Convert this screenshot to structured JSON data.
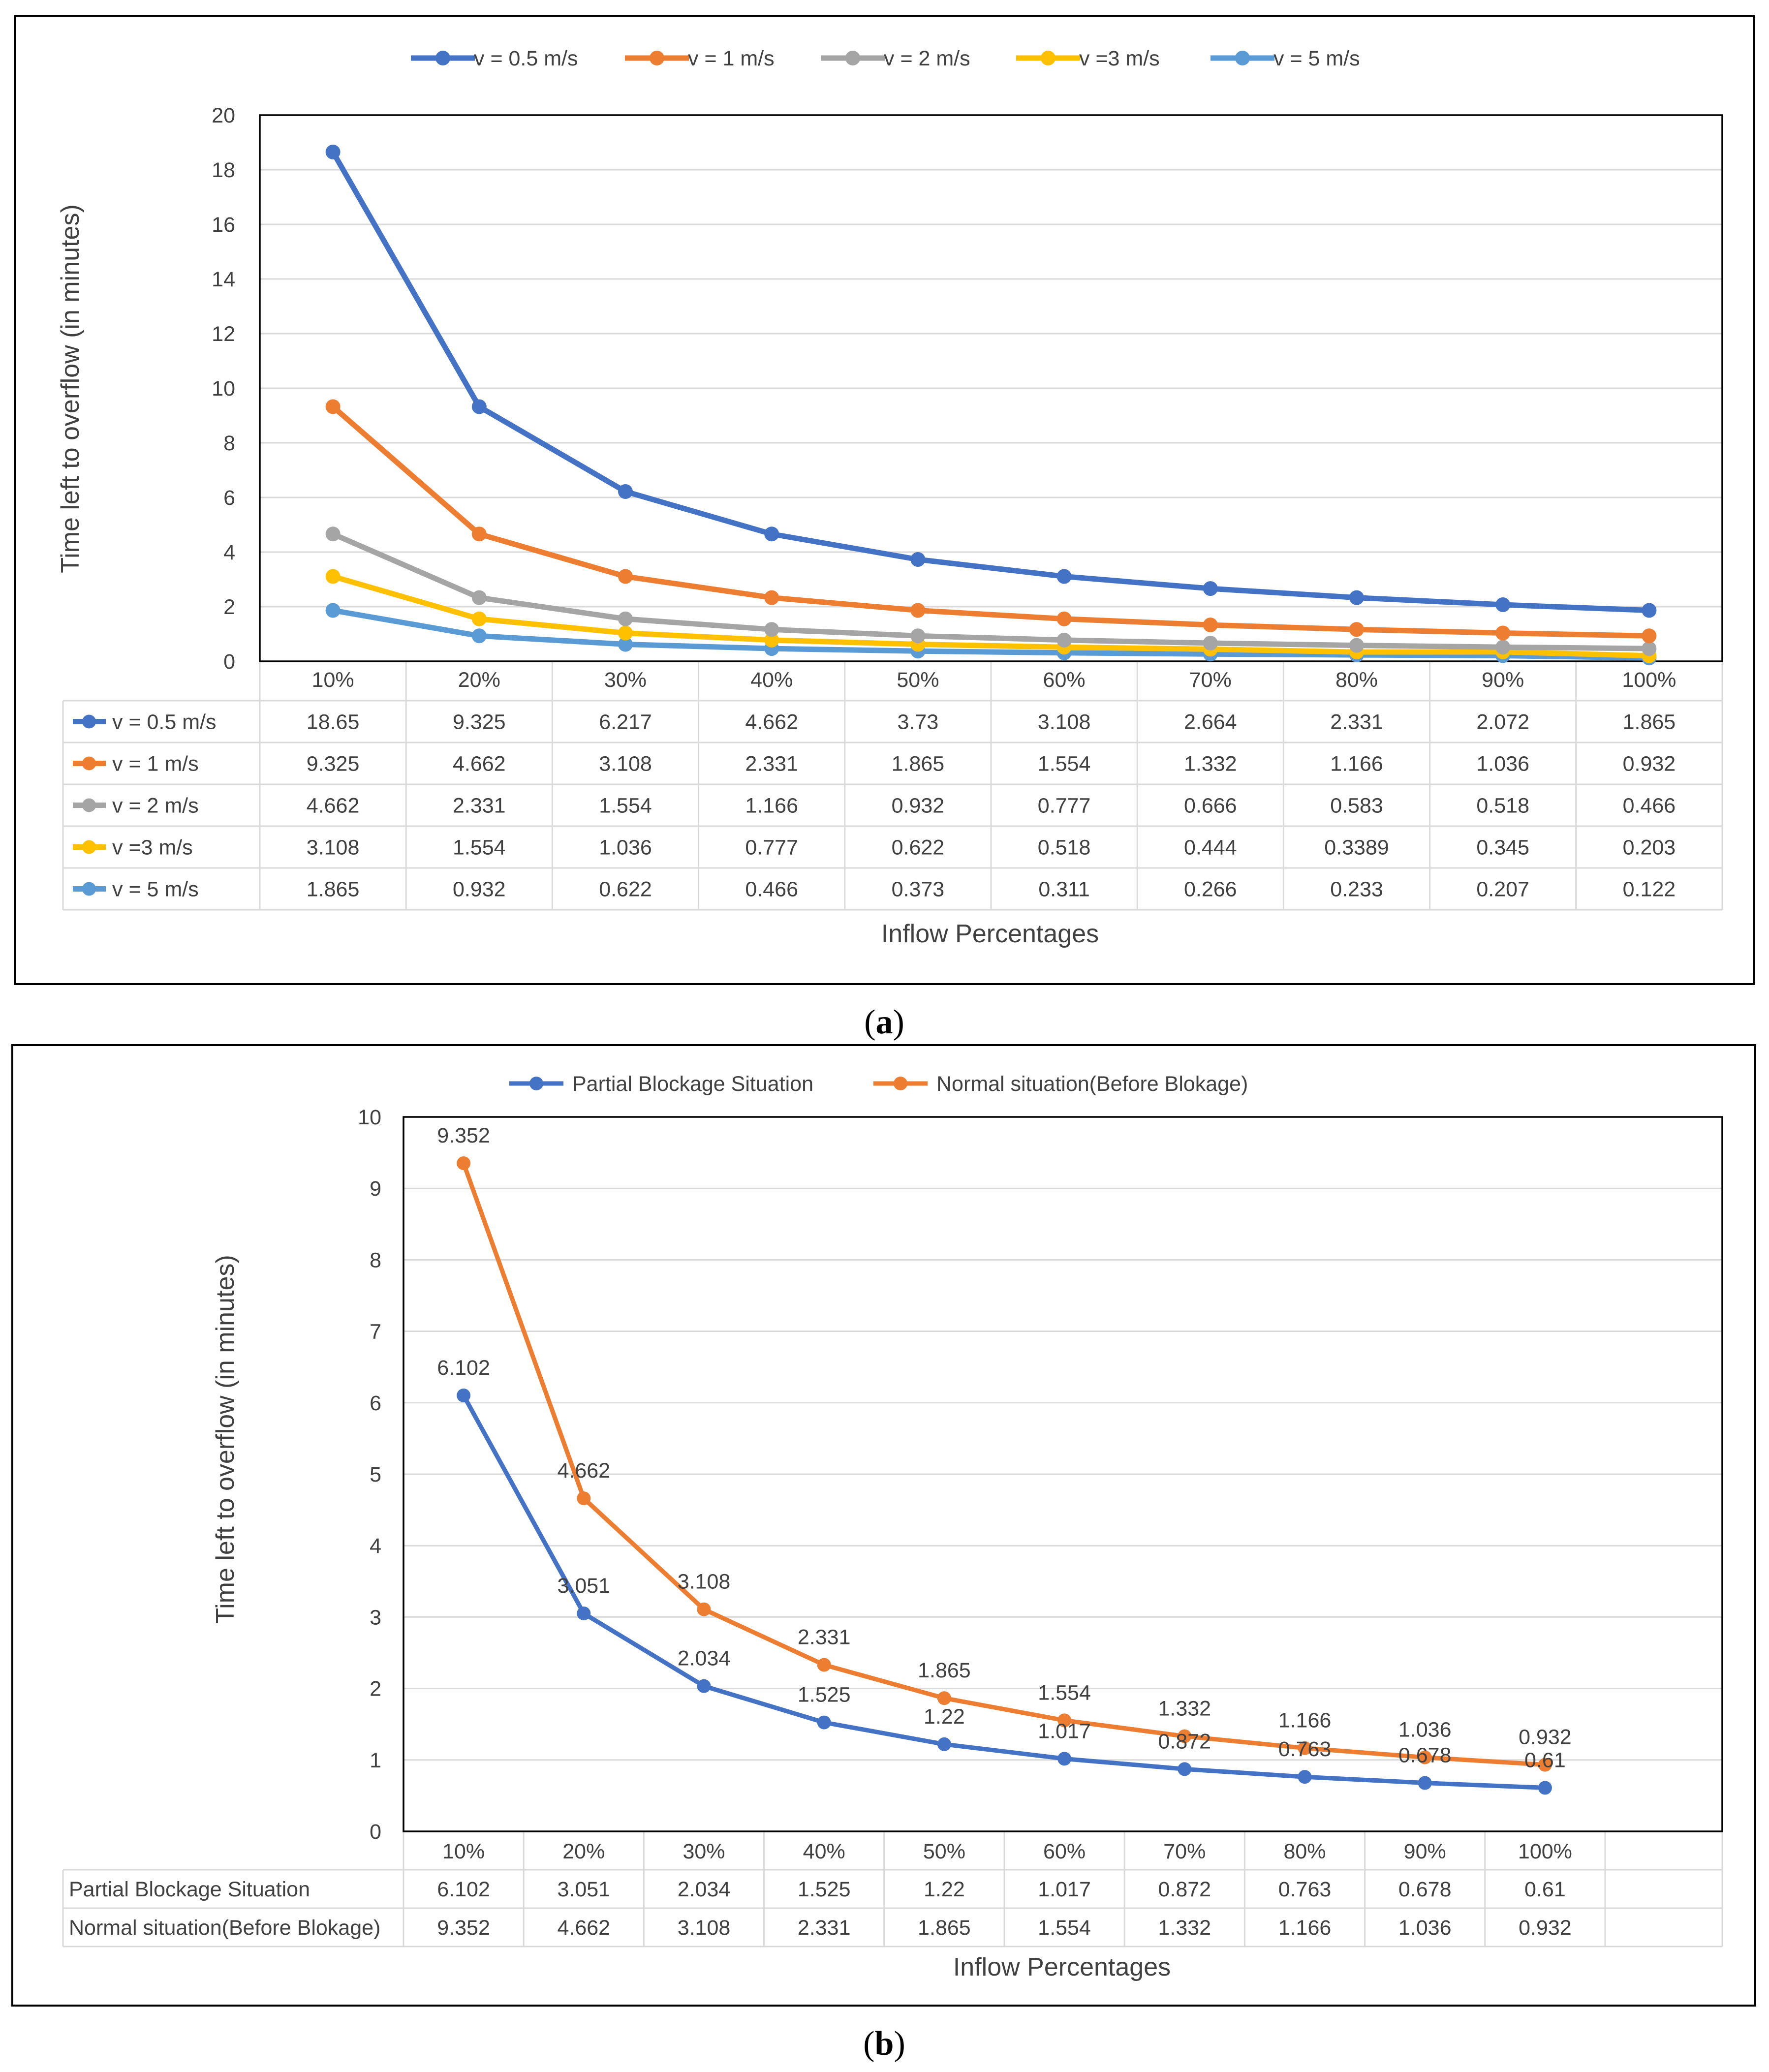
{
  "panels": {
    "a": {
      "label_open": "(",
      "label_letter": "a",
      "label_close": ")"
    },
    "b": {
      "label_open": "(",
      "label_letter": "b",
      "label_close": ")"
    }
  },
  "chart_data": [
    {
      "type": "line",
      "panel": "a",
      "title": "",
      "xlabel": "Inflow Percentages",
      "ylabel": "Time left to overflow (in minutes)",
      "categories": [
        "10%",
        "20%",
        "30%",
        "40%",
        "50%",
        "60%",
        "70%",
        "80%",
        "90%",
        "100%"
      ],
      "ylim": [
        0,
        20
      ],
      "yticks": [
        0,
        2,
        4,
        6,
        8,
        10,
        12,
        14,
        16,
        18,
        20
      ],
      "grid": true,
      "legend_position": "top",
      "data_table": true,
      "series": [
        {
          "name": "v = 0.5 m/s",
          "color": "#4472c4",
          "values": [
            18.65,
            9.325,
            6.217,
            4.662,
            3.73,
            3.108,
            2.664,
            2.331,
            2.072,
            1.865
          ],
          "labels": [
            "18.65",
            "9.325",
            "6.217",
            "4.662",
            "3.73",
            "3.108",
            "2.664",
            "2.331",
            "2.072",
            "1.865"
          ]
        },
        {
          "name": "v = 1 m/s",
          "color": "#ed7d31",
          "values": [
            9.325,
            4.662,
            3.108,
            2.331,
            1.865,
            1.554,
            1.332,
            1.166,
            1.036,
            0.932
          ],
          "labels": [
            "9.325",
            "4.662",
            "3.108",
            "2.331",
            "1.865",
            "1.554",
            "1.332",
            "1.166",
            "1.036",
            "0.932"
          ]
        },
        {
          "name": "v = 2 m/s",
          "color": "#a5a5a5",
          "values": [
            4.662,
            2.331,
            1.554,
            1.166,
            0.932,
            0.777,
            0.666,
            0.583,
            0.518,
            0.466
          ],
          "labels": [
            "4.662",
            "2.331",
            "1.554",
            "1.166",
            "0.932",
            "0.777",
            "0.666",
            "0.583",
            "0.518",
            "0.466"
          ]
        },
        {
          "name": "v =3 m/s",
          "color": "#ffc000",
          "values": [
            3.108,
            1.554,
            1.036,
            0.777,
            0.622,
            0.518,
            0.444,
            0.3389,
            0.345,
            0.203
          ],
          "labels": [
            "3.108",
            "1.554",
            "1.036",
            "0.777",
            "0.622",
            "0.518",
            "0.444",
            "0.3389",
            "0.345",
            "0.203"
          ]
        },
        {
          "name": "v = 5 m/s",
          "color": "#5b9bd5",
          "values": [
            1.865,
            0.932,
            0.622,
            0.466,
            0.373,
            0.311,
            0.266,
            0.233,
            0.207,
            0.122
          ],
          "labels": [
            "1.865",
            "0.932",
            "0.622",
            "0.466",
            "0.373",
            "0.311",
            "0.266",
            "0.233",
            "0.207",
            "0.122"
          ]
        }
      ]
    },
    {
      "type": "line",
      "panel": "b",
      "title": "",
      "xlabel": "Inflow Percentages",
      "ylabel": "Time left to overflow (in minutes)",
      "categories": [
        "10%",
        "20%",
        "30%",
        "40%",
        "50%",
        "60%",
        "70%",
        "80%",
        "90%",
        "100%"
      ],
      "ylim": [
        0,
        10
      ],
      "yticks": [
        0,
        1,
        2,
        3,
        4,
        5,
        6,
        7,
        8,
        9,
        10
      ],
      "grid": true,
      "legend_position": "top",
      "data_table": true,
      "data_labels": true,
      "series": [
        {
          "name": "Partial Blockage Situation",
          "color": "#4472c4",
          "values": [
            6.102,
            3.051,
            2.034,
            1.525,
            1.22,
            1.017,
            0.872,
            0.763,
            0.678,
            0.61
          ],
          "labels": [
            "6.102",
            "3.051",
            "2.034",
            "1.525",
            "1.22",
            "1.017",
            "0.872",
            "0.763",
            "0.678",
            "0.61"
          ]
        },
        {
          "name": "Normal situation(Before Blokage)",
          "color": "#ed7d31",
          "values": [
            9.352,
            4.662,
            3.108,
            2.331,
            1.865,
            1.554,
            1.332,
            1.166,
            1.036,
            0.932
          ],
          "labels": [
            "9.352",
            "4.662",
            "3.108",
            "2.331",
            "1.865",
            "1.554",
            "1.332",
            "1.166",
            "1.036",
            "0.932"
          ]
        }
      ]
    }
  ]
}
